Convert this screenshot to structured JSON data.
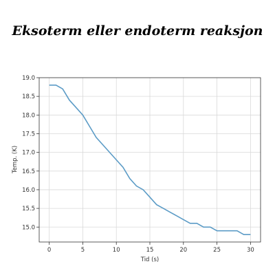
{
  "page": {
    "title": "Eksoterm eller endoterm reaksjon"
  },
  "chart_data": {
    "type": "line",
    "title": "",
    "xlabel": "Tid (s)",
    "ylabel": "Temp. (K)",
    "xlim": [
      -1.5,
      31.5
    ],
    "ylim": [
      14.6,
      19.0
    ],
    "xticks": [
      0,
      5,
      10,
      15,
      20,
      25,
      30
    ],
    "yticks": [
      15.0,
      15.5,
      16.0,
      16.5,
      17.0,
      17.5,
      18.0,
      18.5,
      19.0
    ],
    "grid": true,
    "line_color": "#5b9bc6",
    "series": [
      {
        "x": [
          0,
          1,
          2,
          3,
          4,
          5,
          6,
          7,
          8,
          9,
          10,
          11,
          12,
          13,
          14,
          15,
          16,
          17,
          18,
          19,
          20,
          21,
          22,
          23,
          24,
          25,
          26,
          27,
          28,
          29,
          30
        ],
        "y": [
          18.8,
          18.8,
          18.7,
          18.4,
          18.2,
          18.0,
          17.7,
          17.4,
          17.2,
          17.0,
          16.8,
          16.6,
          16.3,
          16.1,
          16.0,
          15.8,
          15.6,
          15.5,
          15.4,
          15.3,
          15.2,
          15.1,
          15.1,
          15.0,
          15.0,
          14.9,
          14.9,
          14.9,
          14.9,
          14.8,
          14.8
        ]
      }
    ]
  }
}
